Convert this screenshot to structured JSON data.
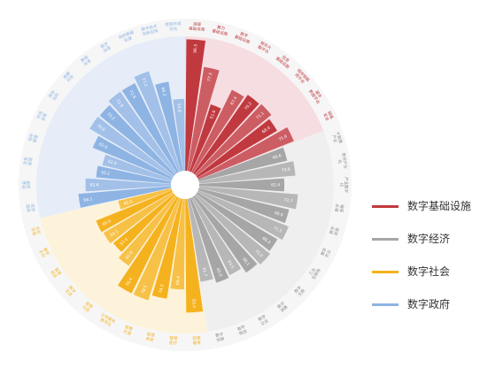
{
  "colors": {
    "infra": "#c0393f",
    "economy": "#a6a6a6",
    "society": "#f5b21f",
    "government": "#8eb4e3",
    "infra_bg": "#f6dde1",
    "economy_bg": "#efefef",
    "society_bg": "#fdf3da",
    "government_bg": "#e6edf8"
  },
  "legend": [
    {
      "label": "数字基础设施",
      "color": "#c0393f"
    },
    {
      "label": "数字经济",
      "color": "#a6a6a6"
    },
    {
      "label": "数字社会",
      "color": "#f5b21f"
    },
    {
      "label": "数字政府",
      "color": "#8eb4e3"
    }
  ],
  "chart_data": {
    "type": "polar-bar",
    "groups": [
      {
        "name": "数字基础设施",
        "items": [
          {
            "label": "连接\n基础设施",
            "value": 96.5
          },
          {
            "label": "算力\n基础设施",
            "value": 77.3
          },
          {
            "label": "数字\n基础设施",
            "value": 51.6
          },
          {
            "label": "城市大\n脑平台",
            "value": 67.4
          },
          {
            "label": "信息\n基础设施",
            "value": 70.2
          },
          {
            "label": "城市物联\n网平台",
            "value": 71.1
          },
          {
            "label": "城市\n数据平台",
            "value": 68.0
          },
          {
            "label": "网络\n安全",
            "value": 75.6
          }
        ]
      },
      {
        "name": "数字经济",
        "items": [
          {
            "label": "大数据\n产业",
            "value": 66.6
          },
          {
            "label": "数字产业\n化",
            "value": 70.8
          },
          {
            "label": "产业数字\n化",
            "value": 62.4
          },
          {
            "label": "数字\n金融",
            "value": 72.7
          },
          {
            "label": "数字\n贸易",
            "value": 68.0
          },
          {
            "label": "数字\n农业",
            "value": 71.5
          },
          {
            "label": "工业\n互联网",
            "value": 68.3
          },
          {
            "label": "数字\n文旅",
            "value": 70.0
          },
          {
            "label": "数字\n消费",
            "value": 68.1
          },
          {
            "label": "数字\n企业",
            "value": 63.5
          },
          {
            "label": "数字\n物流",
            "value": 65.0
          },
          {
            "label": "数字\n创新",
            "value": 61.7
          }
        ]
      },
      {
        "name": "数字社会",
        "items": [
          {
            "label": "智慧\n教育",
            "value": 83.4
          },
          {
            "label": "智慧\n医疗",
            "value": 66.4
          },
          {
            "label": "智慧\n养老",
            "value": 74.3
          },
          {
            "label": "智慧\n交通",
            "value": 78.5
          },
          {
            "label": "公共服务\n数字化",
            "value": 78.4
          },
          {
            "label": "智慧\n社区",
            "value": 62.0
          },
          {
            "label": "数字\n生活",
            "value": 57.4
          },
          {
            "label": "智慧\n就业",
            "value": 59.1
          },
          {
            "label": "数字\n乡村",
            "value": 60.0
          },
          {
            "label": "生态\n环境",
            "value": 40.0
          }
        ]
      },
      {
        "name": "数字政府",
        "items": [
          {
            "label": "政务\n服务",
            "value": 68.1
          },
          {
            "label": "社会\n治理",
            "value": 62.6
          },
          {
            "label": "应急\n管理",
            "value": 55.1
          },
          {
            "label": "城市\n管理",
            "value": 52.0
          },
          {
            "label": "市场\n监管",
            "value": 62.6
          },
          {
            "label": "政务\n协同",
            "value": 70.8
          },
          {
            "label": "数据\n开放",
            "value": 70.2
          },
          {
            "label": "数据\n共享",
            "value": 72.9
          },
          {
            "label": "数字\n治理",
            "value": 72.9
          },
          {
            "label": "政府数据\n治理",
            "value": 77.2
          },
          {
            "label": "数字技术\n创新应用",
            "value": 66.3
          },
          {
            "label": "营商环境\n优化",
            "value": 52.8
          }
        ]
      }
    ]
  }
}
